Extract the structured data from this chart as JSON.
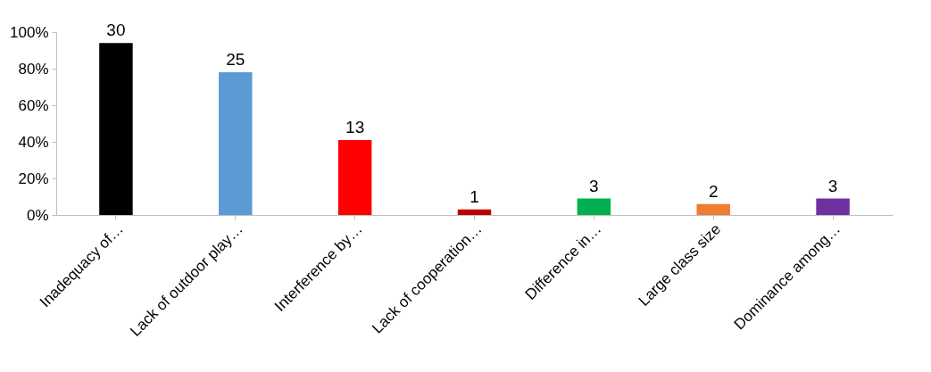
{
  "chart_data": {
    "type": "bar",
    "categories": [
      "Inadequacy of…",
      "Lack of outdoor play…",
      "Interference by…",
      "Lack of cooperation…",
      "Difference in…",
      "Large class size",
      "Dominance among…"
    ],
    "values": [
      94,
      78,
      41,
      3,
      9,
      6,
      9
    ],
    "colors": [
      "#000000",
      "#5b9bd5",
      "#ff0000",
      "#c00000",
      "#00b050",
      "#ed7d31",
      "#7030a0"
    ],
    "annotations": [
      {
        "text": "30",
        "x": "Inadequacy of…",
        "y": 94
      },
      {
        "text": "25",
        "x": "Lack of outdoor play…",
        "y": 78
      },
      {
        "text": "13",
        "x": "Interference by…",
        "y": 41
      },
      {
        "text": "1",
        "x": "Lack of cooperation…",
        "y": 3
      },
      {
        "text": "3",
        "x": "Difference in…",
        "y": 9
      },
      {
        "text": "2",
        "x": "Large class size",
        "y": 6
      },
      {
        "text": "3",
        "x": "Dominance among…",
        "y": 9
      }
    ],
    "ylim": [
      0,
      100
    ],
    "yticks": [
      {
        "value": 0,
        "label": "0%"
      },
      {
        "value": 20,
        "label": "20%"
      },
      {
        "value": 40,
        "label": "40%"
      },
      {
        "value": 60,
        "label": "60%"
      },
      {
        "value": 80,
        "label": "80%"
      },
      {
        "value": 100,
        "label": "100%"
      }
    ],
    "grid": false,
    "legend": false
  }
}
